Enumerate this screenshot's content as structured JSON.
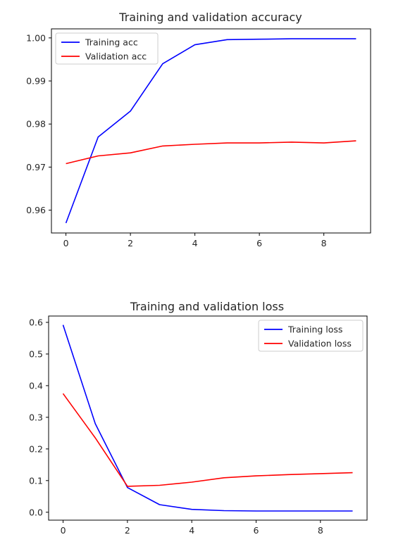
{
  "chart_data": [
    {
      "type": "line",
      "title": "Training and validation accuracy",
      "xlabel": "",
      "ylabel": "",
      "x": [
        0,
        1,
        2,
        3,
        4,
        5,
        6,
        7,
        8,
        9
      ],
      "xlim": [
        -0.45,
        9.45
      ],
      "ylim": [
        0.9547,
        1.0021
      ],
      "xticks": [
        0,
        2,
        4,
        6,
        8
      ],
      "yticks": [
        0.96,
        0.97,
        0.98,
        0.99,
        1.0
      ],
      "ytick_labels": [
        "0.96",
        "0.97",
        "0.98",
        "0.99",
        "1.00"
      ],
      "grid": false,
      "legend_position": "upper left",
      "series": [
        {
          "name": "Training acc",
          "color": "#0000ff",
          "values": [
            0.957,
            0.977,
            0.983,
            0.994,
            0.9984,
            0.9996,
            0.9997,
            0.9998,
            0.9998,
            0.9998
          ]
        },
        {
          "name": "Validation acc",
          "color": "#ff0000",
          "values": [
            0.9708,
            0.9726,
            0.9733,
            0.9749,
            0.9753,
            0.9756,
            0.9756,
            0.9758,
            0.9756,
            0.9761
          ]
        }
      ]
    },
    {
      "type": "line",
      "title": "Training and validation loss",
      "xlabel": "",
      "ylabel": "",
      "x": [
        0,
        1,
        2,
        3,
        4,
        5,
        6,
        7,
        8,
        9
      ],
      "xlim": [
        -0.45,
        9.45
      ],
      "ylim": [
        -0.025,
        0.62
      ],
      "xticks": [
        0,
        2,
        4,
        6,
        8
      ],
      "yticks": [
        0.0,
        0.1,
        0.2,
        0.3,
        0.4,
        0.5,
        0.6
      ],
      "ytick_labels": [
        "0.0",
        "0.1",
        "0.2",
        "0.3",
        "0.4",
        "0.5",
        "0.6"
      ],
      "grid": false,
      "legend_position": "upper right",
      "series": [
        {
          "name": "Training loss",
          "color": "#0000ff",
          "values": [
            0.592,
            0.28,
            0.078,
            0.024,
            0.009,
            0.005,
            0.004,
            0.004,
            0.004,
            0.004
          ]
        },
        {
          "name": "Validation loss",
          "color": "#ff0000",
          "values": [
            0.375,
            0.235,
            0.082,
            0.085,
            0.095,
            0.109,
            0.115,
            0.119,
            0.122,
            0.125
          ]
        }
      ]
    }
  ]
}
